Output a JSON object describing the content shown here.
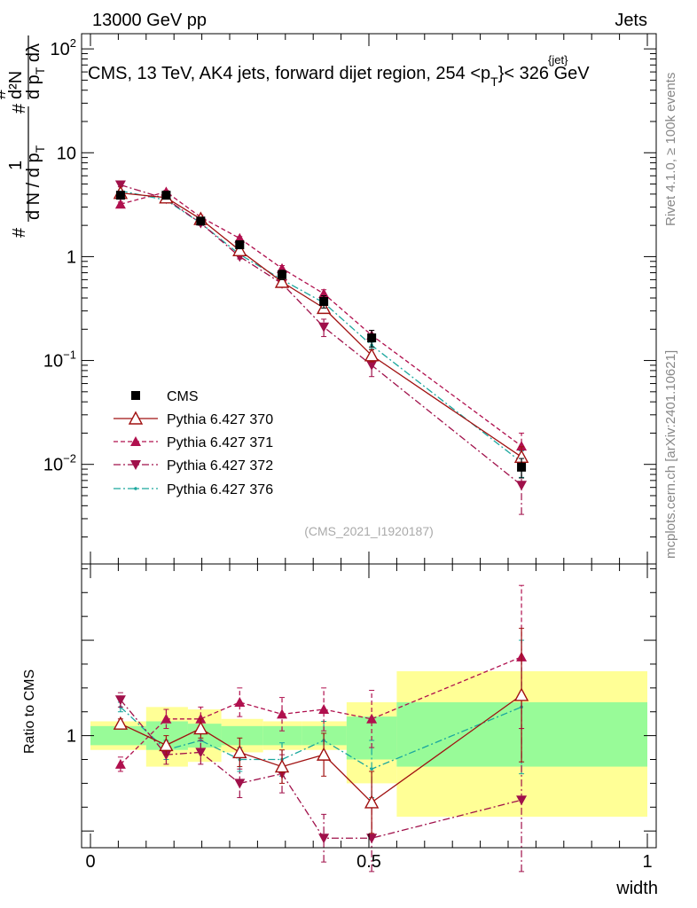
{
  "header": {
    "left": "13000 GeV pp",
    "right": "Jets"
  },
  "side": {
    "rivet": "Rivet 4.1.0, ≥ 100k events",
    "mcplots": "mcplots.cern.ch [arXiv:2401.10621]"
  },
  "colors": {
    "cms": "#000000",
    "p370": "#a01010",
    "p371": "#b0104e",
    "p372": "#a0104a",
    "p376": "#1aa79e",
    "band_syst": "#ffff96",
    "band_stat": "#98fb98"
  },
  "chart_data": [
    {
      "type": "line",
      "title": "CMS, 13 TeV, AK4 jets, forward dijet region, 254 <p_T^{jet}< 326 GeV",
      "title_parts": {
        "prefix": "CMS, 13 TeV, AK4 jets, forward dijet region, 254 <p",
        "sup": "{jet}",
        "sub": "T",
        "suffix": "}< 326 GeV"
      },
      "ylabel_parts": {
        "numer_main": "d²N",
        "numer_sub": "T",
        "denom_main": "d p",
        "denom_suffix": " dλ",
        "frac_hash": "#",
        "left_numer": "1",
        "left_denom": "d N / d p",
        "left_sub": "T",
        "left_hash": "#"
      },
      "xlabel": "width",
      "yscale": "log",
      "ylim": [
        0.0011,
        140
      ],
      "yticks": [
        {
          "value": 0.01,
          "base": "10",
          "exp": "−2"
        },
        {
          "value": 0.1,
          "base": "10",
          "exp": "−1"
        },
        {
          "value": 1,
          "label": "1"
        },
        {
          "value": 10,
          "label": "10"
        },
        {
          "value": 100,
          "base": "10",
          "exp": "2"
        }
      ],
      "watermark": "(CMS_2021_I1920187)",
      "legend_position": "center-left",
      "x": [
        0.054,
        0.136,
        0.198,
        0.268,
        0.344,
        0.419,
        0.505,
        0.774
      ],
      "series": [
        {
          "name": "CMS",
          "key": "cms",
          "style": "square",
          "values": [
            3.9,
            3.9,
            2.2,
            1.3,
            0.67,
            0.37,
            0.165,
            0.0094
          ],
          "err": [
            0.3,
            0.2,
            0.12,
            0.1,
            0.07,
            0.05,
            0.03,
            0.002
          ]
        },
        {
          "name": "Pythia 6.427 370",
          "key": "p370",
          "style": "open-triangle-solid",
          "values": [
            4.1,
            3.7,
            2.3,
            1.15,
            0.57,
            0.32,
            0.112,
            0.0118
          ],
          "err": [
            0.1,
            0.1,
            0.08,
            0.05,
            0.04,
            0.03,
            0.015,
            0.003
          ]
        },
        {
          "name": "Pythia 6.427 371",
          "key": "p371",
          "style": "triangle-up-dashed",
          "values": [
            3.2,
            4.2,
            2.4,
            1.5,
            0.77,
            0.44,
            0.175,
            0.015
          ],
          "err": [
            0.15,
            0.15,
            0.1,
            0.06,
            0.05,
            0.04,
            0.02,
            0.005
          ]
        },
        {
          "name": "Pythia 6.427 372",
          "key": "p372",
          "style": "triangle-down-dashdot",
          "values": [
            4.9,
            3.6,
            2.1,
            1.0,
            0.55,
            0.21,
            0.09,
            0.0063
          ],
          "err": [
            0.2,
            0.15,
            0.1,
            0.05,
            0.04,
            0.04,
            0.02,
            0.003
          ]
        },
        {
          "name": "Pythia 6.427 376",
          "key": "p376",
          "style": "dot-dashdot",
          "values": [
            4.3,
            3.5,
            2.1,
            1.05,
            0.6,
            0.36,
            0.14,
            0.0105
          ],
          "err": [
            0.1,
            0.1,
            0.05,
            0.04,
            0.03,
            0.02,
            0.01,
            0.003
          ]
        }
      ]
    },
    {
      "type": "line",
      "title": "Ratio to CMS",
      "ylabel": "Ratio to CMS",
      "xlabel": "width",
      "xlim": [
        0,
        1
      ],
      "ylim": [
        0.53,
        1.72
      ],
      "yticks": [
        {
          "value": 1,
          "label": "1"
        }
      ],
      "xticks": [
        {
          "value": 0,
          "label": "0"
        },
        {
          "value": 0.5,
          "label": "0.5"
        },
        {
          "value": 1,
          "label": "1"
        }
      ],
      "bins": [
        {
          "lo": 0.0,
          "hi": 0.1,
          "stat": [
            0.96,
            1.04
          ],
          "syst": [
            0.94,
            1.06
          ]
        },
        {
          "lo": 0.1,
          "hi": 0.175,
          "stat": [
            0.94,
            1.06
          ],
          "syst": [
            0.87,
            1.12
          ]
        },
        {
          "lo": 0.175,
          "hi": 0.235,
          "stat": [
            0.95,
            1.05
          ],
          "syst": [
            0.89,
            1.11
          ]
        },
        {
          "lo": 0.235,
          "hi": 0.31,
          "stat": [
            0.96,
            1.04
          ],
          "syst": [
            0.93,
            1.07
          ]
        },
        {
          "lo": 0.31,
          "hi": 0.38,
          "stat": [
            0.96,
            1.04
          ],
          "syst": [
            0.94,
            1.06
          ]
        },
        {
          "lo": 0.38,
          "hi": 0.46,
          "stat": [
            0.96,
            1.04
          ],
          "syst": [
            0.94,
            1.06
          ]
        },
        {
          "lo": 0.46,
          "hi": 0.55,
          "stat": [
            0.9,
            1.08
          ],
          "syst": [
            0.8,
            1.14
          ]
        },
        {
          "lo": 0.55,
          "hi": 1.0,
          "stat": [
            0.87,
            1.14
          ],
          "syst": [
            0.66,
            1.27
          ]
        }
      ],
      "x": [
        0.054,
        0.136,
        0.198,
        0.268,
        0.344,
        0.419,
        0.505,
        0.774
      ],
      "series": [
        {
          "name": "Pythia 6.427 370",
          "key": "p370",
          "style": "open-triangle-solid",
          "values": [
            1.05,
            0.96,
            1.03,
            0.93,
            0.87,
            0.92,
            0.72,
            1.17
          ],
          "err": [
            0.02,
            0.04,
            0.04,
            0.06,
            0.07,
            0.09,
            0.13,
            0.28
          ]
        },
        {
          "name": "Pythia 6.427 371",
          "key": "p371",
          "style": "triangle-up-dashed",
          "values": [
            0.88,
            1.07,
            1.07,
            1.14,
            1.09,
            1.11,
            1.07,
            1.33
          ],
          "err": [
            0.03,
            0.04,
            0.05,
            0.06,
            0.07,
            0.09,
            0.12,
            0.3
          ]
        },
        {
          "name": "Pythia 6.427 372",
          "key": "p372",
          "style": "triangle-down-dashdot",
          "values": [
            1.15,
            0.92,
            0.93,
            0.8,
            0.84,
            0.57,
            0.57,
            0.73
          ],
          "err": [
            0.03,
            0.04,
            0.05,
            0.06,
            0.08,
            0.1,
            0.14,
            0.3
          ]
        },
        {
          "name": "Pythia 6.427 376",
          "key": "p376",
          "style": "dot-dashdot",
          "values": [
            1.12,
            0.94,
            0.98,
            0.9,
            0.9,
            0.98,
            0.86,
            1.12
          ],
          "err": [
            0.02,
            0.04,
            0.04,
            0.05,
            0.07,
            0.08,
            0.12,
            0.28
          ]
        }
      ]
    }
  ]
}
